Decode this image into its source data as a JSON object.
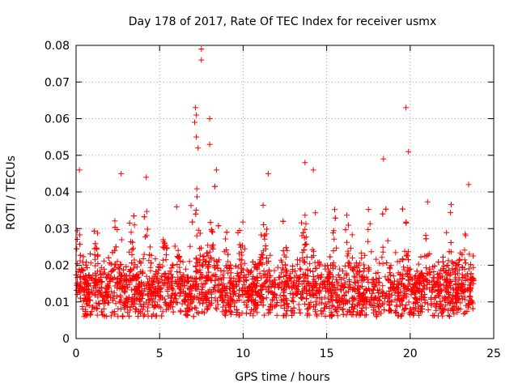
{
  "chart_data": {
    "type": "scatter",
    "title": "Day 178 of 2017, Rate Of TEC Index for receiver usmx",
    "xlabel": "GPS time / hours",
    "ylabel": "ROTI / TECUs",
    "xlim": [
      0,
      25
    ],
    "ylim": [
      0,
      0.08
    ],
    "x_ticks": [
      0,
      5,
      10,
      15,
      20,
      25
    ],
    "y_ticks": [
      0,
      0.01,
      0.02,
      0.03,
      0.04,
      0.05,
      0.06,
      0.07,
      0.08
    ],
    "x_tick_labels": [
      "0",
      "5",
      "10",
      "15",
      "20",
      "25"
    ],
    "y_tick_labels": [
      "0",
      "0.01",
      "0.02",
      "0.03",
      "0.04",
      "0.05",
      "0.06",
      "0.07",
      "0.08"
    ],
    "grid": true,
    "marker": "+",
    "series": [
      {
        "color": "#ff0000",
        "x_range": [
          0,
          23.8
        ],
        "baseline_range": [
          0.005,
          0.02
        ],
        "typical_upper": 0.035,
        "outliers": [
          {
            "x": 7.5,
            "y": 0.079
          },
          {
            "x": 7.5,
            "y": 0.076
          },
          {
            "x": 7.15,
            "y": 0.063
          },
          {
            "x": 7.2,
            "y": 0.061
          },
          {
            "x": 7.1,
            "y": 0.059
          },
          {
            "x": 8.0,
            "y": 0.06
          },
          {
            "x": 19.75,
            "y": 0.063
          },
          {
            "x": 19.9,
            "y": 0.051
          },
          {
            "x": 7.2,
            "y": 0.055
          },
          {
            "x": 7.3,
            "y": 0.052
          },
          {
            "x": 8.0,
            "y": 0.053
          },
          {
            "x": 13.7,
            "y": 0.048
          },
          {
            "x": 14.2,
            "y": 0.046
          },
          {
            "x": 18.4,
            "y": 0.049
          },
          {
            "x": 2.7,
            "y": 0.045
          },
          {
            "x": 0.2,
            "y": 0.046
          },
          {
            "x": 4.2,
            "y": 0.044
          },
          {
            "x": 11.5,
            "y": 0.045
          },
          {
            "x": 8.4,
            "y": 0.046
          },
          {
            "x": 23.5,
            "y": 0.042
          }
        ]
      }
    ]
  }
}
